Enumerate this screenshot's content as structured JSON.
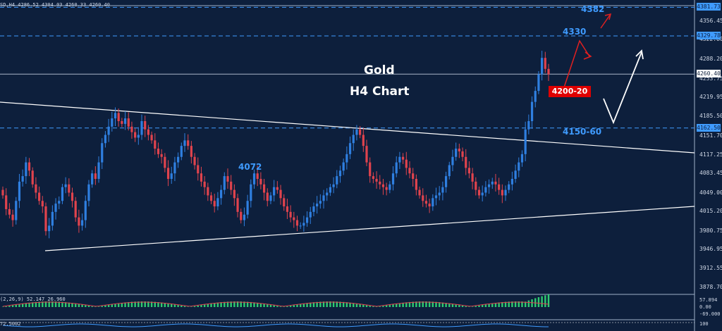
{
  "header": {
    "info": "SD,H4  4286.52 4304.03 4260.33 4260.40"
  },
  "annotations": {
    "title_line1": "Gold",
    "title_line2": "H4 Chart",
    "level_4382": "4382",
    "level_4330": "4330",
    "level_4200": "4200-20",
    "level_4150": "4150-60",
    "level_4072": "4072"
  },
  "axis": {
    "ticks": [
      "4356.45",
      "4322.80",
      "4288.20",
      "4253.75",
      "4219.95",
      "4185.50",
      "4151.70",
      "4117.25",
      "4083.45",
      "4049.00",
      "4015.20",
      "3980.75",
      "3946.95",
      "3912.55",
      "3878.70"
    ],
    "marker_top": "4381.73",
    "marker_mid": "4329.78",
    "marker_price": "4260.40",
    "marker_low": "4162.50"
  },
  "indicators": {
    "macd_label": "(2,26,9) 52.147 26.960",
    "macd_ticks": [
      "57.894",
      "0.00",
      "-69.000"
    ],
    "rsi_label": "72.5002",
    "rsi_tick": "100"
  },
  "colors": {
    "bg": "#0d1f3c",
    "bull": "#2f7fe0",
    "bear": "#e0434d",
    "accent": "#3f9bff",
    "arrow_red": "#e02020",
    "annotation_box": "#e00000"
  },
  "chart_data": {
    "type": "candlestick",
    "title": "H4 Chart",
    "symbol": "Gold",
    "ylim": [
      3860,
      4385
    ],
    "candles_close": [
      4040,
      4015,
      4005,
      3995,
      4030,
      4065,
      4075,
      4100,
      4085,
      4060,
      4045,
      4030,
      4020,
      3975,
      3985,
      4010,
      4025,
      4030,
      4055,
      4060,
      4045,
      4030,
      4000,
      3985,
      3995,
      4030,
      4060,
      4080,
      4070,
      4100,
      4135,
      4150,
      4165,
      4180,
      4190,
      4175,
      4170,
      4180,
      4165,
      4155,
      4145,
      4150,
      4175,
      4160,
      4150,
      4140,
      4125,
      4115,
      4110,
      4090,
      4070,
      4080,
      4100,
      4110,
      4130,
      4140,
      4130,
      4110,
      4095,
      4080,
      4065,
      4055,
      4040,
      4030,
      4020,
      4035,
      4050,
      4075,
      4065,
      4050,
      4035,
      4010,
      3995,
      4005,
      4030,
      4060,
      4080,
      4070,
      4060,
      4045,
      4030,
      4040,
      4055,
      4050,
      4035,
      4020,
      4010,
      4000,
      3995,
      3985,
      3985,
      3990,
      4000,
      4010,
      4020,
      4025,
      4030,
      4040,
      4045,
      4055,
      4060,
      4075,
      4085,
      4100,
      4115,
      4135,
      4150,
      4160,
      4150,
      4130,
      4100,
      4075,
      4070,
      4065,
      4060,
      4055,
      4050,
      4060,
      4080,
      4100,
      4110,
      4105,
      4090,
      4080,
      4070,
      4050,
      4040,
      4030,
      4025,
      4020,
      4035,
      4040,
      4045,
      4055,
      4075,
      4095,
      4110,
      4125,
      4120,
      4110,
      4090,
      4080,
      4065,
      4050,
      4040,
      4045,
      4055,
      4060,
      4065,
      4060,
      4050,
      4040,
      4050,
      4060,
      4070,
      4085,
      4100,
      4115,
      4160,
      4175,
      4210,
      4230,
      4260,
      4290,
      4270,
      4260
    ],
    "levels": [
      4382,
      4330,
      4260.4,
      4162.5
    ],
    "annotated_levels": [
      "4382",
      "4330",
      "4200-20",
      "4150-60",
      "4072"
    ]
  }
}
